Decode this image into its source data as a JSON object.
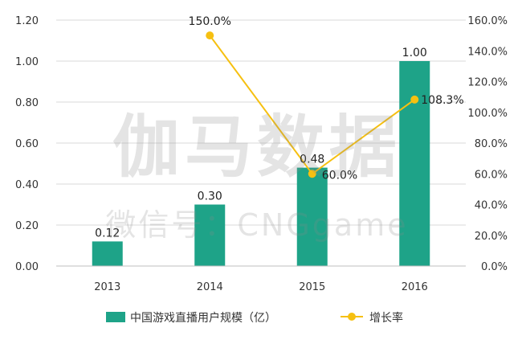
{
  "chart_data": {
    "type": "bar",
    "categories": [
      "2013",
      "2014",
      "2015",
      "2016"
    ],
    "series": [
      {
        "name": "中国游戏直播用户规模（亿）",
        "type": "bar",
        "axis": "left",
        "values": [
          0.12,
          0.3,
          0.48,
          1.0
        ],
        "labels": [
          "0.12",
          "0.30",
          "0.48",
          "1.00"
        ],
        "color": "#1ea388"
      },
      {
        "name": "增长率",
        "type": "line",
        "axis": "right",
        "values": [
          null,
          150.0,
          60.0,
          108.3
        ],
        "labels": [
          "",
          "150.0%",
          "60.0%",
          "108.3%"
        ],
        "color": "#f6c011"
      }
    ],
    "left_axis": {
      "ylim": [
        0,
        1.2
      ],
      "ticks": [
        "0.00",
        "0.20",
        "0.40",
        "0.60",
        "0.80",
        "1.00",
        "1.20"
      ]
    },
    "right_axis": {
      "ylim": [
        0,
        160
      ],
      "ticks": [
        "0.0%",
        "20.0%",
        "40.0%",
        "60.0%",
        "80.0%",
        "100.0%",
        "120.0%",
        "140.0%",
        "160.0%"
      ]
    },
    "grid": true,
    "legend_position": "bottom",
    "watermark": {
      "line1": "伽马数据",
      "line2": "微信号：CNGgame"
    }
  }
}
